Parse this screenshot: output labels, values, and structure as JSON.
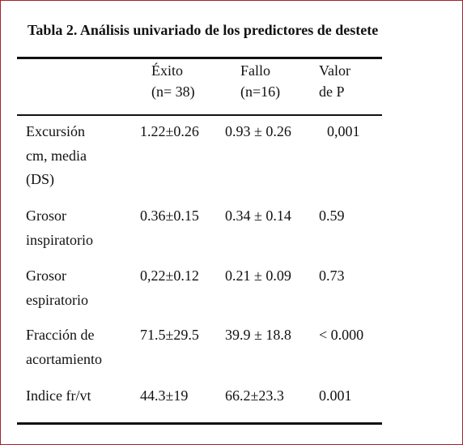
{
  "title": "Tabla 2. Análisis univariado de los predictores de destete",
  "table": {
    "columns": [
      [
        "Éxito",
        "(n= 38)"
      ],
      [
        "Fallo",
        "(n=16)"
      ],
      [
        "Valor",
        "de P"
      ]
    ],
    "rows": [
      {
        "label": [
          "Excursión",
          "cm, media",
          "(DS)"
        ],
        "cells": [
          "1.22±0.26",
          "0.93 ± 0.26",
          "0,001"
        ]
      },
      {
        "label": [
          "Grosor",
          "inspiratorio"
        ],
        "cells": [
          "0.36±0.15",
          "0.34 ± 0.14",
          "0.59"
        ]
      },
      {
        "label": [
          "Grosor",
          "espiratorio"
        ],
        "cells": [
          "0,22±0.12",
          "0.21 ± 0.09",
          "0.73"
        ]
      },
      {
        "label": [
          "Fracción de",
          "acortamiento"
        ],
        "cells": [
          "71.5±29.5",
          "39.9 ± 18.8",
          "< 0.000"
        ]
      },
      {
        "label": [
          "Indice fr/vt"
        ],
        "cells": [
          "44.3±19",
          "66.2±23.3",
          "0.001"
        ]
      }
    ]
  }
}
